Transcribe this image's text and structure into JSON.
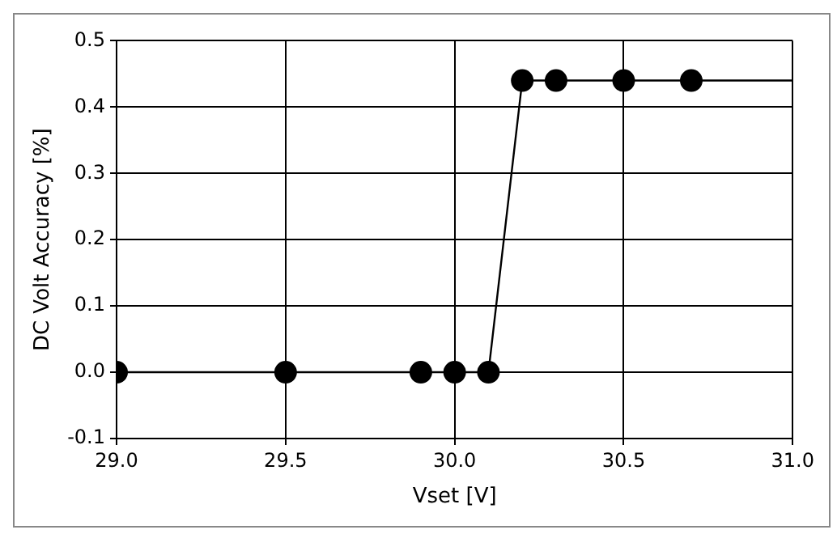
{
  "chart_data": {
    "type": "line",
    "xlabel": "Vset [V]",
    "ylabel": "DC Volt Accuracy [%]",
    "xlim": [
      29.0,
      31.0
    ],
    "xticks": [
      {
        "value": 29,
        "label": "29.0"
      },
      29.5,
      {
        "value": 30,
        "label": "30.0"
      },
      30.5,
      {
        "value": 31,
        "label": "31.0"
      }
    ],
    "ylim": [
      -0.1,
      0.5
    ],
    "yticks": [
      -0.1,
      {
        "value": 0,
        "label": "0.0"
      },
      0.1,
      0.2,
      0.3,
      0.4,
      0.5
    ],
    "grid": true,
    "legend": false,
    "series": [
      {
        "marker": "none",
        "color": "#000000",
        "x": [
          29.0,
          29.5,
          29.9,
          30.0,
          30.1,
          30.2,
          30.3,
          30.5,
          30.7,
          31.0
        ],
        "values": [
          0,
          0,
          0,
          0,
          0,
          0.44,
          0.44,
          0.44,
          0.44,
          0.44
        ]
      },
      {
        "type": "scatter",
        "marker": "circle",
        "color": "#000000",
        "x": [
          29.0,
          29.5,
          29.9,
          30.0,
          30.1,
          30.2,
          30.3,
          30.5,
          30.7
        ],
        "values": [
          0,
          0,
          0,
          0,
          0,
          0.44,
          0.44,
          0.44,
          0.44
        ]
      }
    ]
  }
}
